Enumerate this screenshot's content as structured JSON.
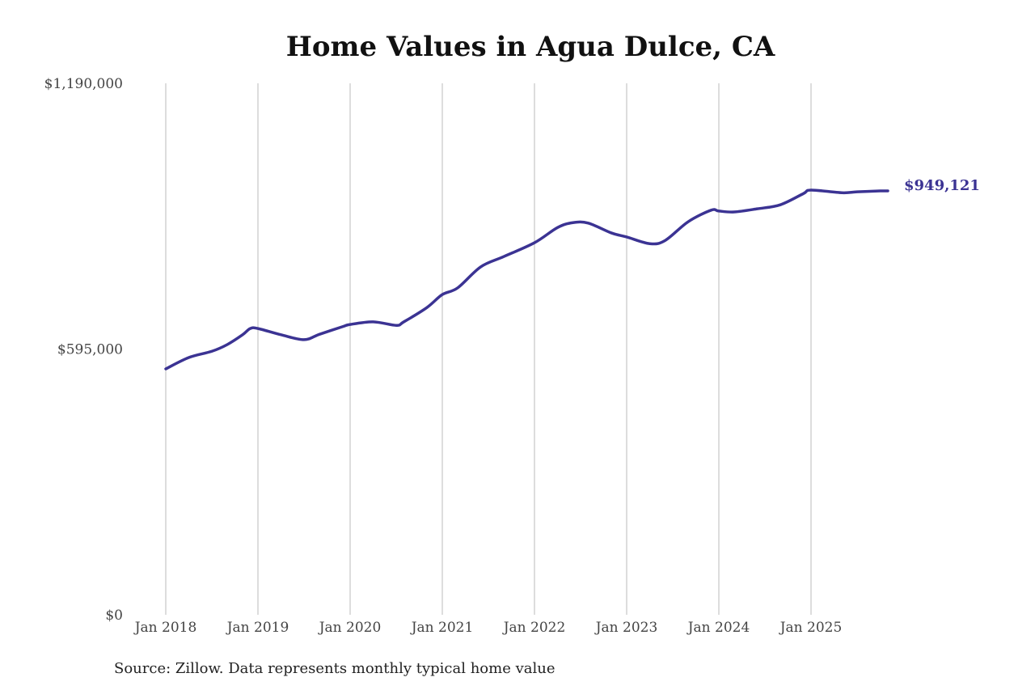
{
  "chart_data": {
    "type": "line",
    "title": "Home Values in Agua Dulce, CA",
    "source": "Source: Zillow. Data represents monthly typical home value",
    "xlabel": "",
    "ylabel": "",
    "ylim": [
      0,
      1190000
    ],
    "y_ticks": [
      0,
      595000,
      1190000
    ],
    "y_tick_labels": [
      "$0",
      "$595,000",
      "$1,190,000"
    ],
    "x_tick_labels": [
      "Jan 2018",
      "Jan 2019",
      "Jan 2020",
      "Jan 2021",
      "Jan 2022",
      "Jan 2023",
      "Jan 2024",
      "Jan 2025"
    ],
    "grid": "vertical",
    "line_color": "#3b3393",
    "end_label": "$949,121",
    "series": [
      {
        "x": [
          "2018-01",
          "2018-04",
          "2018-07",
          "2018-09",
          "2018-11",
          "2018-12",
          "2019-01",
          "2019-04",
          "2019-07",
          "2019-09",
          "2019-12",
          "2020-01",
          "2020-04",
          "2020-07",
          "2020-08",
          "2020-11",
          "2021-01",
          "2021-03",
          "2021-06",
          "2021-09",
          "2022-01",
          "2022-04",
          "2022-06",
          "2022-08",
          "2022-11",
          "2023-01",
          "2023-04",
          "2023-06",
          "2023-09",
          "2023-12",
          "2024-01",
          "2024-03",
          "2024-06",
          "2024-09",
          "2024-12",
          "2025-01",
          "2025-05",
          "2025-07",
          "2025-10",
          "2025-11"
        ],
        "values": [
          550600,
          576000,
          590000,
          605000,
          627000,
          641000,
          641000,
          627000,
          616000,
          628000,
          645000,
          650000,
          656000,
          648000,
          656000,
          688000,
          717000,
          732000,
          779000,
          802000,
          833000,
          867000,
          878000,
          877000,
          855000,
          846000,
          831000,
          838000,
          880000,
          906000,
          904000,
          902000,
          909000,
          918000,
          943000,
          951000,
          945000,
          947000,
          949000,
          949121
        ]
      }
    ]
  }
}
